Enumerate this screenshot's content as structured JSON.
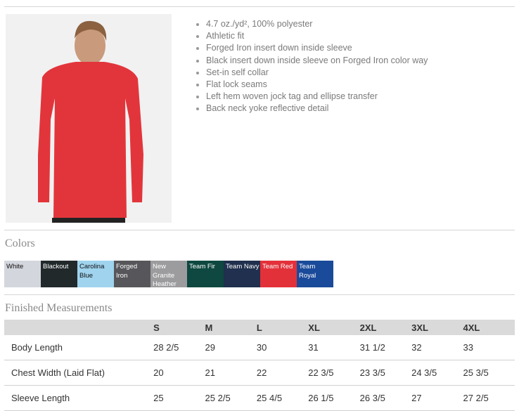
{
  "features": [
    "4.7 oz./yd², 100% polyester",
    "Athletic fit",
    "Forged Iron insert down inside sleeve",
    "Black insert down inside sleeve on Forged Iron color way",
    "Set-in self collar",
    "Flat lock seams",
    "Left hem woven jock tag and ellipse transfer",
    "Back neck yoke reflective detail"
  ],
  "colors_title": "Colors",
  "colors": [
    {
      "name": "White",
      "hex": "#d4d6de",
      "text": "#111"
    },
    {
      "name": "Blackout",
      "hex": "#22292b",
      "text": "#fff"
    },
    {
      "name": "Carolina Blue",
      "hex": "#9fd3ee",
      "text": "#111"
    },
    {
      "name": "Forged Iron",
      "hex": "#57575b",
      "text": "#fff"
    },
    {
      "name": "New Granite Heather",
      "hex": "#9c9c9e",
      "text": "#fff"
    },
    {
      "name": "Team Fir",
      "hex": "#0e4840",
      "text": "#fff"
    },
    {
      "name": "Team Navy",
      "hex": "#20304e",
      "text": "#fff"
    },
    {
      "name": "Team Red",
      "hex": "#e3313a",
      "text": "#fff"
    },
    {
      "name": "Team Royal",
      "hex": "#1a4a9a",
      "text": "#fff"
    }
  ],
  "measurements_title": "Finished Measurements",
  "sizes": [
    "S",
    "M",
    "L",
    "XL",
    "2XL",
    "3XL",
    "4XL"
  ],
  "rows": [
    {
      "label": "Body Length",
      "values": [
        "28 2/5",
        "29",
        "30",
        "31",
        "31 1/2",
        "32",
        "33"
      ]
    },
    {
      "label": "Chest Width (Laid Flat)",
      "values": [
        "20",
        "21",
        "22",
        "22 3/5",
        "23 3/5",
        "24 3/5",
        "25 3/5"
      ]
    },
    {
      "label": "Sleeve Length",
      "values": [
        "25",
        "25 2/5",
        "25 4/5",
        "26 1/5",
        "26 3/5",
        "27",
        "27 2/5"
      ]
    }
  ]
}
